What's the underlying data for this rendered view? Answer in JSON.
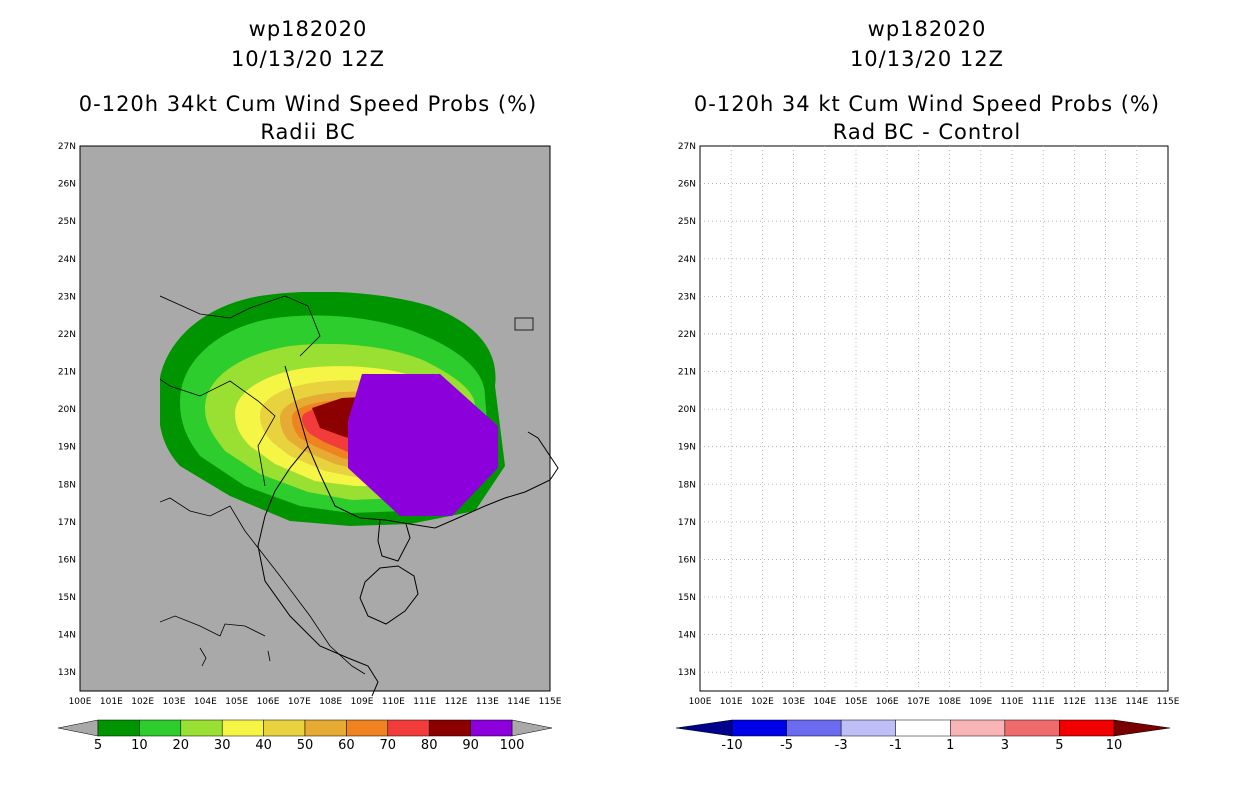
{
  "left_panel": {
    "storm_id": "wp182020",
    "datetime": "10/13/20 12Z",
    "title": "0-120h 34kt Cum Wind Speed Probs (%)",
    "subtitle": "Radii BC",
    "colorbar": {
      "labels": [
        "5",
        "10",
        "20",
        "30",
        "40",
        "50",
        "60",
        "70",
        "80",
        "90",
        "100"
      ],
      "colors": [
        "#009500",
        "#2dcd2d",
        "#99e032",
        "#f5f545",
        "#e8d23d",
        "#e6ab32",
        "#ee8320",
        "#f23c3c",
        "#8c0000",
        "#8c00dc"
      ],
      "arrow_color": "#a9a9a9"
    }
  },
  "right_panel": {
    "storm_id": "wp182020",
    "datetime": "10/13/20 12Z",
    "title": "0-120h 34 kt Cum Wind Speed Probs (%)",
    "subtitle": "Rad BC - Control",
    "colorbar": {
      "labels": [
        "-10",
        "-5",
        "-3",
        "-1",
        "1",
        "3",
        "5",
        "10"
      ],
      "colors": [
        "#0000e6",
        "#6b6bf0",
        "#bfbff8",
        "#ffffff",
        "#f7b5b5",
        "#f06b6b",
        "#f00000"
      ],
      "arrow_left_color": "#00008c",
      "arrow_right_color": "#780000"
    }
  },
  "map": {
    "lat_labels": [
      "27N",
      "26N",
      "25N",
      "24N",
      "23N",
      "22N",
      "21N",
      "20N",
      "19N",
      "18N",
      "17N",
      "16N",
      "15N",
      "14N",
      "13N"
    ],
    "lon_labels": [
      "100E",
      "101E",
      "102E",
      "103E",
      "104E",
      "105E",
      "106E",
      "107E",
      "108E",
      "109E",
      "110E",
      "111E",
      "112E",
      "113E",
      "114E",
      "115E"
    ],
    "lat_range": [
      12.5,
      27
    ],
    "lon_range": [
      100,
      115
    ]
  },
  "colors": {
    "left_background": "#a9a9a9",
    "right_background": "#ffffff",
    "gridline": "#aaaaaa"
  }
}
